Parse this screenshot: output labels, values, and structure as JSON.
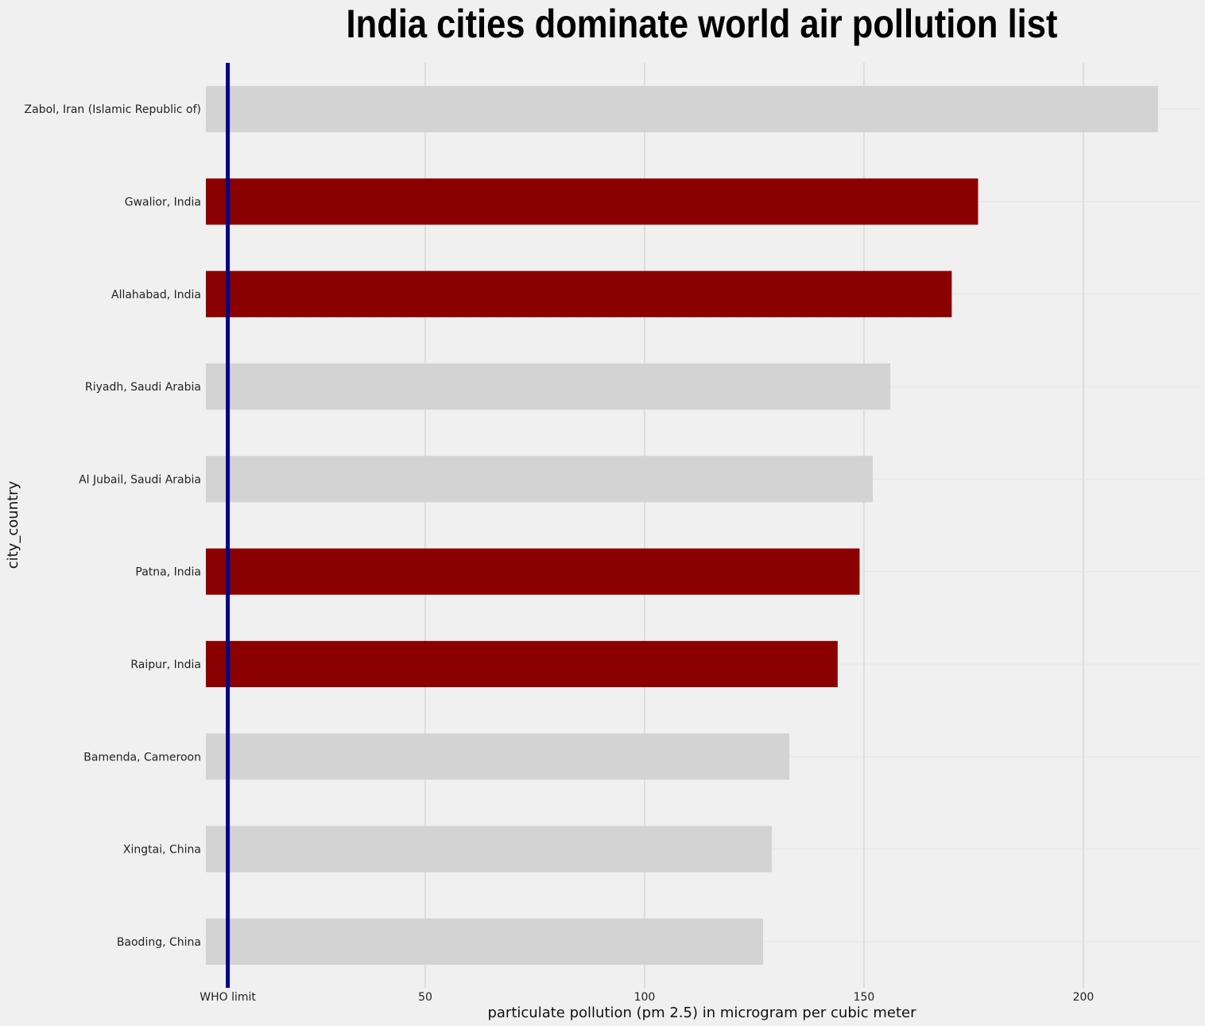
{
  "chart_data": {
    "type": "bar",
    "orientation": "horizontal",
    "title": "India cities dominate world air pollution list",
    "xlabel": "particulate pollution (pm 2.5) in microgram per cubic meter",
    "ylabel": "city_country",
    "xlim": [
      0,
      227
    ],
    "x_ticks": [
      {
        "value": 5,
        "label": "WHO limit"
      },
      {
        "value": 50,
        "label": "50"
      },
      {
        "value": 100,
        "label": "100"
      },
      {
        "value": 150,
        "label": "150"
      },
      {
        "value": 200,
        "label": "200"
      }
    ],
    "reference_line": {
      "value": 5,
      "label": "WHO limit",
      "color": "#00008b"
    },
    "grid": true,
    "colors": {
      "india": "#8b0000",
      "other": "#d3d3d3",
      "background": "#f0f0f0",
      "grid": "#cbcbcb"
    },
    "categories": [
      "Zabol, Iran (Islamic Republic of)",
      "Gwalior, India",
      "Allahabad, India",
      "Riyadh, Saudi Arabia",
      "Al Jubail, Saudi Arabia",
      "Patna, India",
      "Raipur, India",
      "Bamenda, Cameroon",
      "Xingtai, China",
      "Baoding, China"
    ],
    "values": [
      217,
      176,
      170,
      156,
      152,
      149,
      144,
      133,
      129,
      127
    ],
    "highlight": [
      false,
      true,
      true,
      false,
      false,
      true,
      true,
      false,
      false,
      false
    ]
  }
}
